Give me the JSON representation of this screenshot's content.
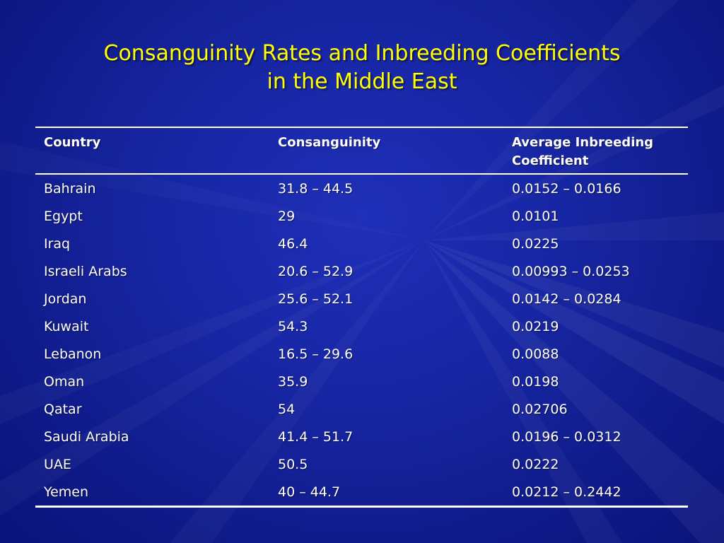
{
  "slide": {
    "title_line1": "Consanguinity Rates and Inbreeding Coefficients",
    "title_line2": "in the Middle East"
  },
  "table": {
    "headers": {
      "country": "Country",
      "consanguinity": "Consanguinity",
      "coefficient_line1": "Average Inbreeding",
      "coefficient_line2": "Coefficient"
    },
    "rows": [
      {
        "country": "Bahrain",
        "consanguinity": "31.8 – 44.5",
        "coefficient": "0.0152 – 0.0166"
      },
      {
        "country": "Egypt",
        "consanguinity": "29",
        "coefficient": "0.0101"
      },
      {
        "country": "Iraq",
        "consanguinity": "46.4",
        "coefficient": "0.0225"
      },
      {
        "country": "Israeli Arabs",
        "consanguinity": "20.6 – 52.9",
        "coefficient": "0.00993 – 0.0253"
      },
      {
        "country": "Jordan",
        "consanguinity": "25.6 – 52.1",
        "coefficient": "0.0142 – 0.0284"
      },
      {
        "country": "Kuwait",
        "consanguinity": "54.3",
        "coefficient": "0.0219"
      },
      {
        "country": "Lebanon",
        "consanguinity": "16.5 – 29.6",
        "coefficient": "0.0088"
      },
      {
        "country": "Oman",
        "consanguinity": "35.9",
        "coefficient": "0.0198"
      },
      {
        "country": "Qatar",
        "consanguinity": "54",
        "coefficient": "0.02706"
      },
      {
        "country": "Saudi Arabia",
        "consanguinity": "41.4 – 51.7",
        "coefficient": "0.0196 – 0.0312"
      },
      {
        "country": "UAE",
        "consanguinity": "50.5",
        "coefficient": "0.0222"
      },
      {
        "country": "Yemen",
        "consanguinity": "40 – 44.7",
        "coefficient": "0.0212 – 0.2442"
      }
    ]
  },
  "colors": {
    "background": "#1827a6",
    "title": "#ffff00",
    "text": "#ffffff"
  }
}
